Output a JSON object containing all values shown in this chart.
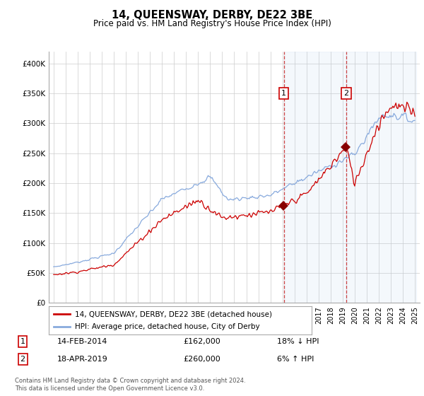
{
  "title": "14, QUEENSWAY, DERBY, DE22 3BE",
  "subtitle": "Price paid vs. HM Land Registry's House Price Index (HPI)",
  "legend_property": "14, QUEENSWAY, DERBY, DE22 3BE (detached house)",
  "legend_hpi": "HPI: Average price, detached house, City of Derby",
  "annotation1_date": "14-FEB-2014",
  "annotation1_price": 162000,
  "annotation1_hpi_pct": "18% ↓ HPI",
  "annotation2_date": "18-APR-2019",
  "annotation2_price": 260000,
  "annotation2_hpi_pct": "6% ↑ HPI",
  "footer": "Contains HM Land Registry data © Crown copyright and database right 2024.\nThis data is licensed under the Open Government Licence v3.0.",
  "property_color": "#cc0000",
  "hpi_color": "#88aadd",
  "annotation_shade_color": "#ddeeff",
  "annotation_line_color": "#cc4444",
  "ylim": [
    0,
    420000
  ],
  "yticks": [
    0,
    50000,
    100000,
    150000,
    200000,
    250000,
    300000,
    350000,
    400000
  ],
  "ytick_labels": [
    "£0",
    "£50K",
    "£100K",
    "£150K",
    "£200K",
    "£250K",
    "£300K",
    "£350K",
    "£400K"
  ],
  "sale1_year": 2014.12,
  "sale2_year": 2019.29,
  "background_color": "#ffffff",
  "grid_color": "#cccccc"
}
